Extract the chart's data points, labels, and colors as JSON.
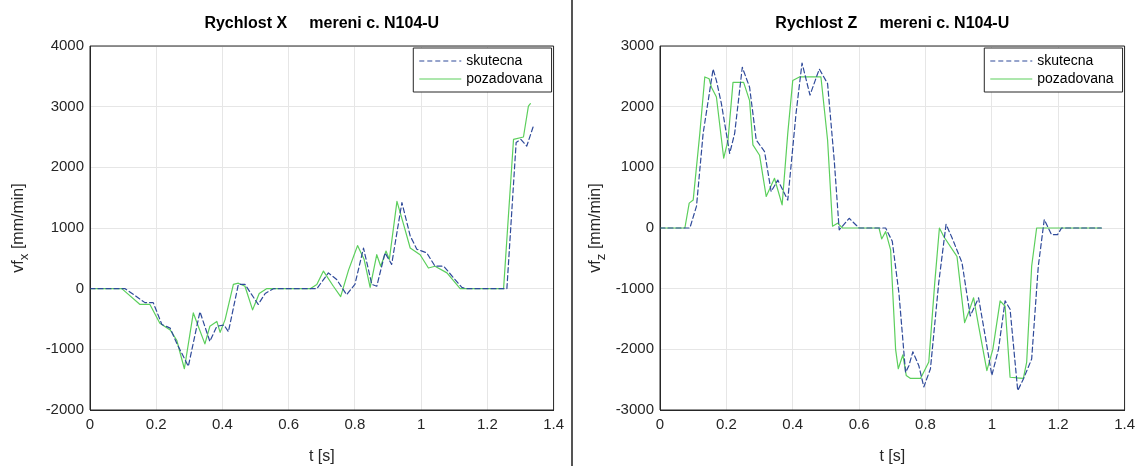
{
  "chart_data": [
    {
      "type": "line",
      "title": "Rychlost X     mereni c. N104-U",
      "xlabel": "t [s]",
      "ylabel": "vf$_{x}$ [mm/min]",
      "xlim": [
        0,
        1.4
      ],
      "xticks": [
        0,
        0.2,
        0.4,
        0.6,
        0.8,
        1,
        1.2,
        1.4
      ],
      "ylim": [
        -2000,
        4000
      ],
      "yticks": [
        -2000,
        -1000,
        0,
        1000,
        2000,
        3000,
        4000
      ],
      "grid": true,
      "legend": "top right",
      "series": [
        {
          "name": "skutecna",
          "color": "#2f4a9a",
          "line_style": "dashed",
          "x": [
            0,
            0.106,
            0.166,
            0.191,
            0.217,
            0.242,
            0.262,
            0.297,
            0.332,
            0.362,
            0.383,
            0.405,
            0.418,
            0.448,
            0.468,
            0.508,
            0.529,
            0.554,
            0.685,
            0.72,
            0.745,
            0.775,
            0.8,
            0.826,
            0.851,
            0.866,
            0.891,
            0.911,
            0.942,
            0.967,
            0.987,
            1.017,
            1.042,
            1.068,
            1.123,
            1.138,
            1.259,
            1.287,
            1.301,
            1.319,
            1.339
          ],
          "values": [
            0,
            0,
            -230,
            -230,
            -590,
            -650,
            -900,
            -1280,
            -380,
            -870,
            -620,
            -600,
            -710,
            70,
            70,
            -260,
            -80,
            0,
            0,
            260,
            150,
            -100,
            70,
            670,
            70,
            40,
            590,
            400,
            1420,
            870,
            650,
            590,
            370,
            370,
            20,
            0,
            0,
            2410,
            2460,
            2350,
            2680
          ]
        },
        {
          "name": "pozadovana",
          "color": "#5ccf5c",
          "line_style": "solid",
          "x": [
            0,
            0.096,
            0.151,
            0.181,
            0.211,
            0.242,
            0.262,
            0.285,
            0.312,
            0.347,
            0.362,
            0.383,
            0.393,
            0.408,
            0.433,
            0.448,
            0.468,
            0.491,
            0.511,
            0.533,
            0.665,
            0.685,
            0.705,
            0.735,
            0.757,
            0.781,
            0.808,
            0.828,
            0.846,
            0.866,
            0.878,
            0.894,
            0.904,
            0.927,
            0.947,
            0.967,
            0.997,
            1.022,
            1.042,
            1.078,
            1.118,
            1.249,
            1.279,
            1.309,
            1.324,
            1.33
          ],
          "values": [
            0,
            0,
            -260,
            -260,
            -570,
            -680,
            -850,
            -1320,
            -400,
            -910,
            -620,
            -540,
            -720,
            -510,
            70,
            90,
            40,
            -350,
            -80,
            0,
            0,
            70,
            290,
            40,
            -130,
            310,
            710,
            480,
            20,
            560,
            370,
            620,
            480,
            1440,
            1060,
            670,
            560,
            340,
            370,
            260,
            0,
            0,
            2460,
            2500,
            3010,
            3050
          ]
        }
      ]
    },
    {
      "type": "line",
      "title": "Rychlost Z     mereni c. N104-U",
      "xlabel": "t [s]",
      "ylabel": "vf$_{z}$ [mm/min]",
      "xlim": [
        0,
        1.4
      ],
      "xticks": [
        0,
        0.2,
        0.4,
        0.6,
        0.8,
        1,
        1.2,
        1.4
      ],
      "ylim": [
        -3000,
        3000
      ],
      "yticks": [
        -3000,
        -2000,
        -1000,
        0,
        1000,
        2000,
        3000
      ],
      "grid": true,
      "legend": "top right",
      "series": [
        {
          "name": "skutecna",
          "color": "#2f4a9a",
          "line_style": "dashed",
          "x": [
            0,
            0.09,
            0.11,
            0.13,
            0.16,
            0.17,
            0.185,
            0.21,
            0.225,
            0.248,
            0.27,
            0.29,
            0.315,
            0.335,
            0.355,
            0.385,
            0.41,
            0.428,
            0.452,
            0.48,
            0.505,
            0.525,
            0.54,
            0.55,
            0.57,
            0.6,
            0.68,
            0.7,
            0.72,
            0.74,
            0.75,
            0.762,
            0.78,
            0.795,
            0.815,
            0.84,
            0.862,
            0.88,
            0.91,
            0.935,
            0.96,
            0.98,
            1.0,
            1.02,
            1.04,
            1.055,
            1.078,
            1.095,
            1.12,
            1.14,
            1.158,
            1.18,
            1.198,
            1.21,
            1.33
          ],
          "values": [
            0,
            0,
            360,
            1560,
            2620,
            2430,
            2050,
            1230,
            1560,
            2650,
            2320,
            1450,
            1260,
            600,
            790,
            460,
            1890,
            2720,
            2190,
            2620,
            2380,
            1120,
            -30,
            30,
            160,
            0,
            0,
            -220,
            -1070,
            -2380,
            -2270,
            -2040,
            -2270,
            -2620,
            -2320,
            -900,
            60,
            -160,
            -570,
            -1450,
            -1150,
            -1780,
            -2430,
            -2000,
            -1200,
            -1340,
            -2680,
            -2490,
            -2160,
            -630,
            140,
            -110,
            -110,
            0,
            0
          ]
        },
        {
          "name": "pozadovana",
          "color": "#5ccf5c",
          "line_style": "solid",
          "x": [
            0,
            0.075,
            0.088,
            0.1,
            0.12,
            0.135,
            0.148,
            0.155,
            0.17,
            0.192,
            0.205,
            0.22,
            0.252,
            0.27,
            0.28,
            0.3,
            0.32,
            0.345,
            0.368,
            0.385,
            0.4,
            0.42,
            0.485,
            0.505,
            0.52,
            0.535,
            0.55,
            0.66,
            0.668,
            0.68,
            0.695,
            0.71,
            0.718,
            0.732,
            0.742,
            0.755,
            0.785,
            0.81,
            0.828,
            0.842,
            0.855,
            0.895,
            0.918,
            0.93,
            0.945,
            0.96,
            0.985,
            1.003,
            1.025,
            1.04,
            1.055,
            1.095,
            1.105,
            1.12,
            1.135,
            1.33
          ],
          "values": [
            0,
            0,
            410,
            460,
            1560,
            2490,
            2460,
            2320,
            2160,
            1150,
            1450,
            2400,
            2400,
            2100,
            1370,
            1200,
            520,
            820,
            380,
            1560,
            2430,
            2490,
            2490,
            1450,
            30,
            80,
            0,
            0,
            -180,
            -60,
            -360,
            -2000,
            -2320,
            -2090,
            -2430,
            -2480,
            -2480,
            -2210,
            -900,
            0,
            -140,
            -470,
            -1560,
            -1390,
            -1150,
            -1610,
            -2350,
            -2000,
            -1200,
            -1290,
            -2460,
            -2480,
            -2210,
            -630,
            0,
            0
          ]
        }
      ]
    }
  ]
}
